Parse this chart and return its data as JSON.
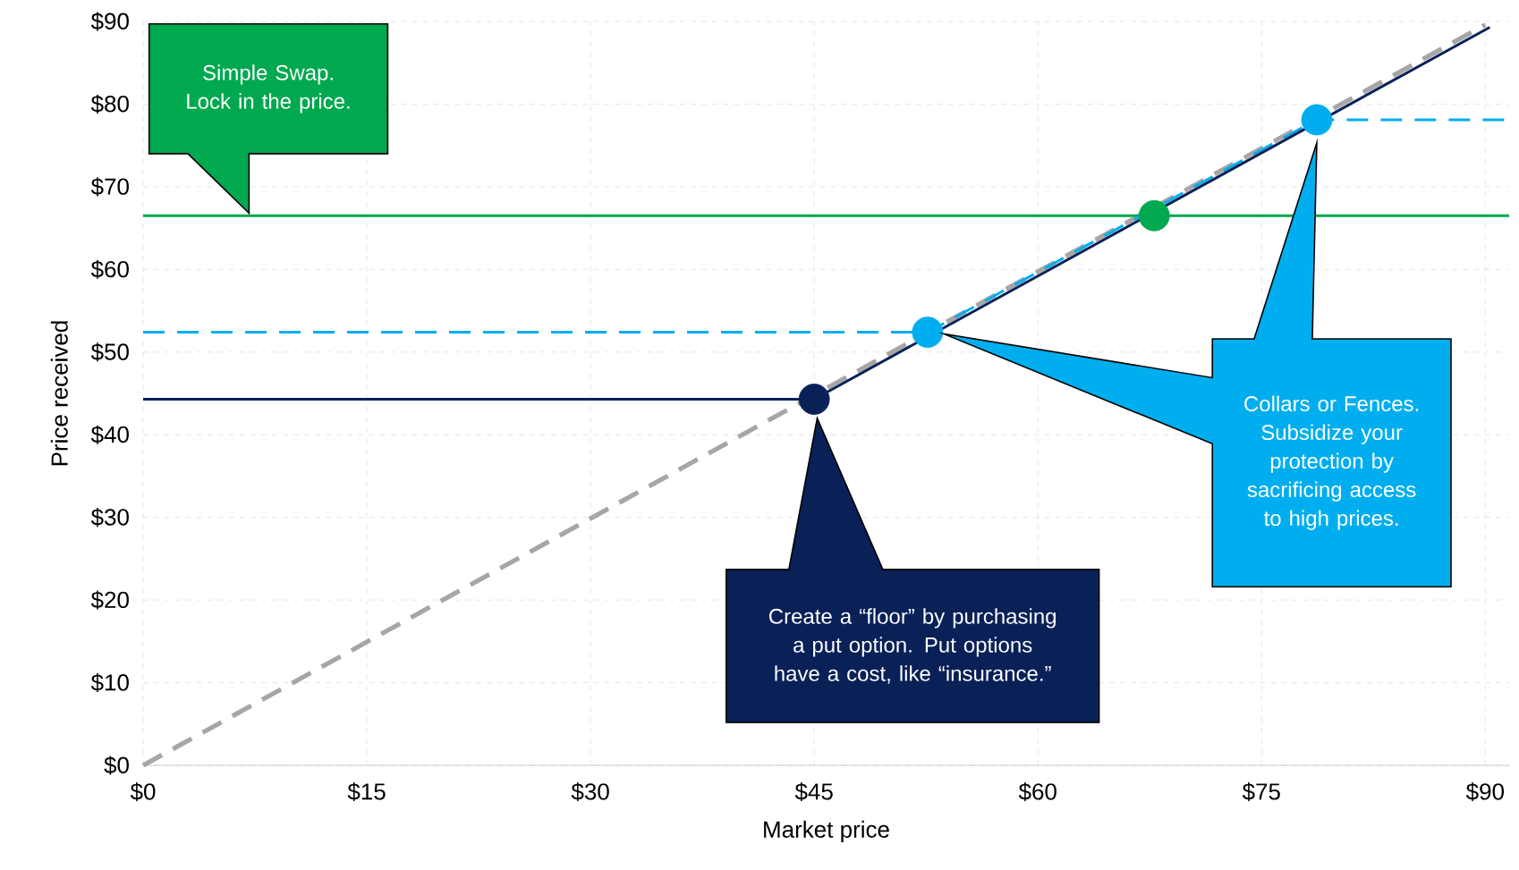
{
  "chart_data": {
    "type": "line",
    "xlabel": "Market price",
    "ylabel": "Price received",
    "xlim": [
      0,
      91.6
    ],
    "ylim": [
      0,
      90
    ],
    "xticks": [
      {
        "value": 0,
        "label": "$0"
      },
      {
        "value": 15,
        "label": "$15"
      },
      {
        "value": 30,
        "label": "$30"
      },
      {
        "value": 45,
        "label": "$45"
      },
      {
        "value": 60,
        "label": "$60"
      },
      {
        "value": 75,
        "label": "$75"
      },
      {
        "value": 90,
        "label": "$90"
      }
    ],
    "yticks": [
      {
        "value": 0,
        "label": "$0"
      },
      {
        "value": 10,
        "label": "$10"
      },
      {
        "value": 20,
        "label": "$20"
      },
      {
        "value": 30,
        "label": "$30"
      },
      {
        "value": 40,
        "label": "$40"
      },
      {
        "value": 50,
        "label": "$50"
      },
      {
        "value": 60,
        "label": "$60"
      },
      {
        "value": 70,
        "label": "$70"
      },
      {
        "value": 80,
        "label": "$80"
      },
      {
        "value": 90,
        "label": "$90"
      }
    ],
    "grid": true,
    "series": [
      {
        "color": "#a6a6a6",
        "line_style": "dashed",
        "x": [
          0,
          90
        ],
        "values": [
          0,
          89.6
        ]
      },
      {
        "color": "#00a84f",
        "line_style": "solid",
        "x": [
          0,
          91.6
        ],
        "values": [
          66.5,
          66.5
        ]
      },
      {
        "color": "#00aeef",
        "line_style": "dashed",
        "x": [
          0,
          52.6,
          78.7,
          91.6
        ],
        "values": [
          52.4,
          52.4,
          78.1,
          78.1
        ]
      },
      {
        "color": "#0a2158",
        "line_style": "solid",
        "x": [
          0,
          45,
          90.3
        ],
        "values": [
          44.3,
          44.3,
          89.3
        ]
      },
      {
        "type": "scatter",
        "marker": "circle",
        "colors": [
          "#0a2158",
          "#00aeef",
          "#00a84f",
          "#00aeef"
        ],
        "x": [
          45,
          52.6,
          67.8,
          78.7
        ],
        "values": [
          44.3,
          52.4,
          66.5,
          78.1
        ]
      }
    ],
    "annotations": [
      "Simple Swap. Lock in the price.",
      "Create a “floor” by purchasing a put option. Put options have a cost, like “insurance.”",
      "Collars or Fences. Subsidize your protection by sacrificing access to high prices."
    ]
  }
}
